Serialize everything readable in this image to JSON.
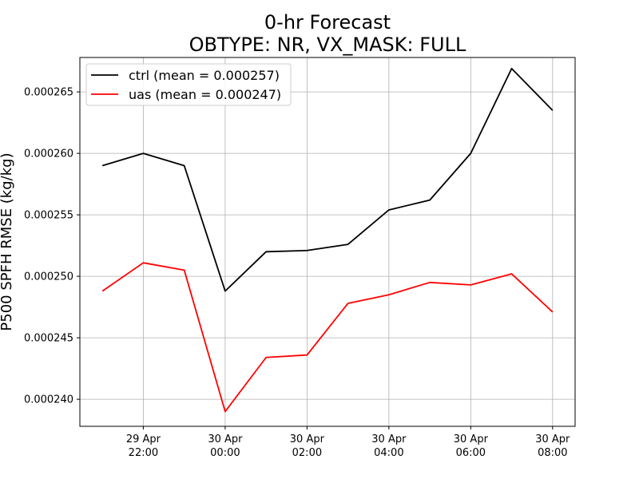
{
  "chart_data": {
    "type": "line",
    "title_lines": [
      "0-hr Forecast",
      "OBTYPE: NR,  VX_MASK: FULL"
    ],
    "xlabel": "",
    "ylabel": "P500 SPFH RMSE (kg/kg)",
    "x": [
      "2023-04-29T21:00",
      "2023-04-29T22:00",
      "2023-04-29T23:00",
      "2023-04-30T00:00",
      "2023-04-30T01:00",
      "2023-04-30T02:00",
      "2023-04-30T03:00",
      "2023-04-30T04:00",
      "2023-04-30T05:00",
      "2023-04-30T06:00",
      "2023-04-30T07:00",
      "2023-04-30T08:00"
    ],
    "x_ticks": [
      {
        "x": "2023-04-29T22:00",
        "line1": "29 Apr",
        "line2": "22:00"
      },
      {
        "x": "2023-04-30T00:00",
        "line1": "30 Apr",
        "line2": "00:00"
      },
      {
        "x": "2023-04-30T02:00",
        "line1": "30 Apr",
        "line2": "02:00"
      },
      {
        "x": "2023-04-30T04:00",
        "line1": "30 Apr",
        "line2": "04:00"
      },
      {
        "x": "2023-04-30T06:00",
        "line1": "30 Apr",
        "line2": "06:00"
      },
      {
        "x": "2023-04-30T08:00",
        "line1": "30 Apr",
        "line2": "08:00"
      }
    ],
    "xlim": [
      "2023-04-29T20:27",
      "2023-04-30T08:33"
    ],
    "ylim": [
      0.0002378,
      0.0002678
    ],
    "y_ticks": [
      0.00024,
      0.000245,
      0.00025,
      0.000255,
      0.00026,
      0.000265
    ],
    "y_tick_labels": [
      "0.000240",
      "0.000245",
      "0.000250",
      "0.000255",
      "0.000260",
      "0.000265"
    ],
    "grid": true,
    "legend_position": "top-left",
    "series": [
      {
        "name": "ctrl (mean = 0.000257)",
        "color": "#000000",
        "values": [
          0.000259,
          0.00026,
          0.000259,
          0.0002488,
          0.000252,
          0.0002521,
          0.0002526,
          0.0002554,
          0.0002562,
          0.00026,
          0.0002669,
          0.0002635
        ]
      },
      {
        "name": "uas (mean = 0.000247)",
        "color": "#ff0000",
        "values": [
          0.0002488,
          0.0002511,
          0.0002505,
          0.000239,
          0.0002434,
          0.0002436,
          0.0002478,
          0.0002485,
          0.0002495,
          0.0002493,
          0.0002502,
          0.0002471
        ]
      }
    ]
  }
}
